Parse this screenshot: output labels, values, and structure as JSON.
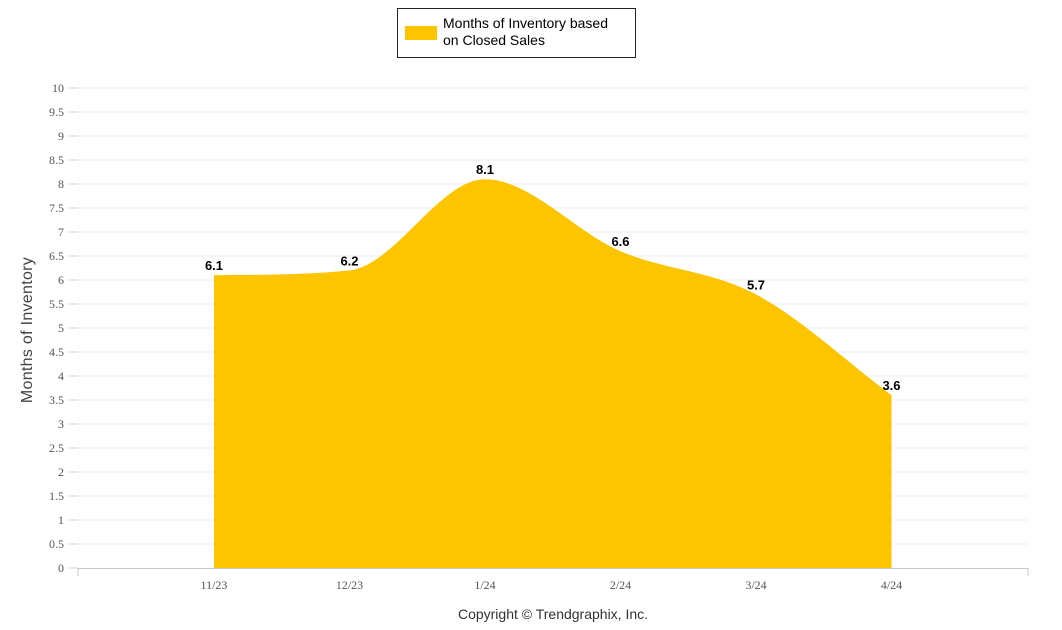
{
  "chart_data": {
    "type": "area",
    "categories": [
      "11/23",
      "12/23",
      "1/24",
      "2/24",
      "3/24",
      "4/24"
    ],
    "series": [
      {
        "name": "Months of Inventory based on Closed Sales",
        "values": [
          6.1,
          6.2,
          8.1,
          6.6,
          5.7,
          3.6
        ],
        "color": "#FDC400"
      }
    ],
    "legend_lines": [
      "Months of Inventory based",
      "on Closed Sales"
    ],
    "ylabel": "Months of Inventory",
    "xlabel": "",
    "ylim": [
      0,
      10
    ],
    "ytick_step": 0.5,
    "legend_position": "top-center",
    "grid": true,
    "credit": "Copyright © Trendgraphix, Inc."
  }
}
